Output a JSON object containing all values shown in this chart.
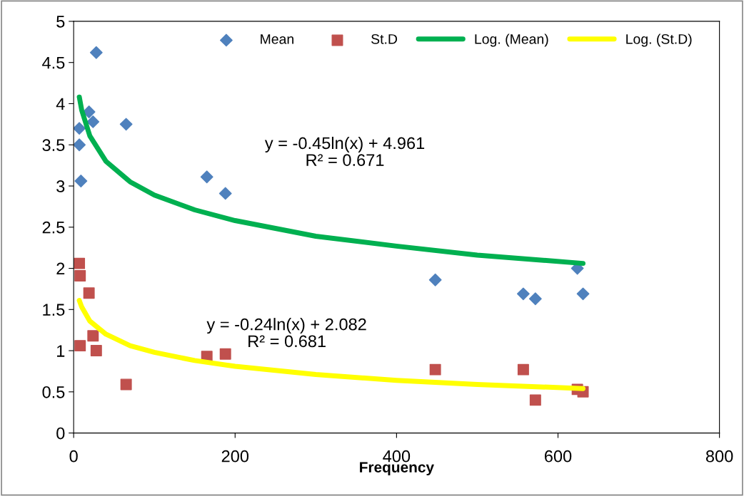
{
  "chart_data": {
    "type": "scatter",
    "xlabel": "Frequency",
    "xlim": [
      0,
      800
    ],
    "xticks": [
      0,
      200,
      400,
      600,
      800
    ],
    "ylim": [
      0,
      5
    ],
    "yticks": [
      0,
      0.5,
      1,
      1.5,
      2,
      2.5,
      3,
      3.5,
      4,
      4.5,
      5
    ],
    "grid": false,
    "legend": "top",
    "series": [
      {
        "name": "Mean",
        "marker": "diamond",
        "color": "#4f81bd",
        "x": [
          7,
          7,
          9,
          19,
          24,
          28,
          65,
          165,
          188,
          448,
          557,
          572,
          624,
          631
        ],
        "values": [
          3.7,
          3.5,
          3.06,
          3.9,
          3.78,
          4.62,
          3.75,
          3.11,
          2.91,
          1.86,
          1.69,
          1.63,
          2.0,
          1.69
        ]
      },
      {
        "name": "St.D",
        "marker": "square",
        "color": "#c0504d",
        "x": [
          7,
          8,
          8,
          19,
          24,
          28,
          65,
          165,
          188,
          448,
          557,
          572,
          624,
          631
        ],
        "values": [
          2.06,
          1.91,
          1.06,
          1.7,
          1.18,
          1.0,
          0.59,
          0.93,
          0.96,
          0.77,
          0.77,
          0.4,
          0.53,
          0.5
        ]
      },
      {
        "name": "Log. (Mean)",
        "type": "line",
        "color": "#00b050",
        "x": [
          7,
          10,
          20,
          40,
          70,
          100,
          150,
          200,
          300,
          400,
          500,
          631
        ],
        "values": [
          4.08,
          3.92,
          3.61,
          3.3,
          3.05,
          2.89,
          2.71,
          2.58,
          2.39,
          2.27,
          2.16,
          2.06
        ]
      },
      {
        "name": "Log. (St.D)",
        "type": "line",
        "color": "#ffff00",
        "x": [
          7,
          10,
          20,
          40,
          70,
          100,
          150,
          200,
          300,
          400,
          500,
          631
        ],
        "values": [
          1.61,
          1.53,
          1.36,
          1.2,
          1.06,
          0.98,
          0.88,
          0.81,
          0.71,
          0.64,
          0.59,
          0.54
        ]
      }
    ],
    "annotations": [
      "y = -0.45ln(x) + 4.961\nR² = 0.671",
      "y = -0.24ln(x) + 2.082\nR² = 0.681"
    ]
  }
}
